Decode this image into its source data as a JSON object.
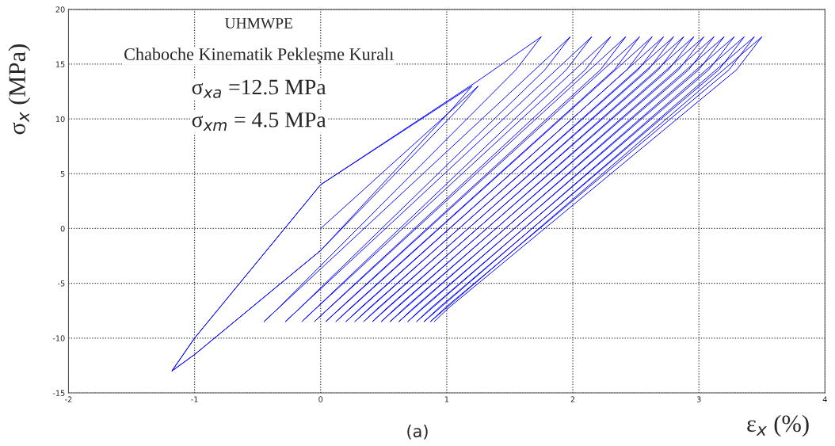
{
  "chart_data": {
    "type": "line",
    "xlabel": "ε$_{x}$ (%)",
    "ylabel": "σ$_{x}$ (MPa)",
    "annotations": [
      "UHMWPE",
      "Chaboche Kinematik Pekleşme Kuralı",
      "σ$_{xa}$ =12.5 MPa",
      "σ$_{xm}$ = 4.5 MPa",
      "(a)"
    ],
    "xlim": [
      -2,
      4
    ],
    "xticks": [
      -2,
      -1,
      0,
      1,
      2,
      3,
      4
    ],
    "ylim": [
      -15,
      20
    ],
    "yticks": [
      -15,
      -10,
      -5,
      0,
      5,
      10,
      15,
      20
    ],
    "grid": true,
    "marker": "none",
    "line_style": "solid",
    "series": [
      {
        "color": "#0000ff",
        "x": [
          0,
          1.25,
          1.1,
          0,
          -1.0,
          -1.18,
          -1.0,
          0,
          1.2,
          1.05,
          0,
          -1.0,
          -1.18,
          -1.0,
          0,
          1.25,
          1.75,
          1.55,
          -0.33,
          -0.45,
          1.98,
          1.78,
          -0.16,
          -0.28,
          2.15,
          1.95,
          -0.03,
          -0.15,
          2.3,
          2.1,
          0.07,
          -0.05,
          2.42,
          2.22,
          0.16,
          0.04,
          2.53,
          2.33,
          0.24,
          0.12,
          2.63,
          2.43,
          0.32,
          0.2,
          2.72,
          2.52,
          0.39,
          0.27,
          2.8,
          2.6,
          0.46,
          0.34,
          2.88,
          2.68,
          0.53,
          0.41,
          2.96,
          2.76,
          0.6,
          0.48,
          3.04,
          2.84,
          0.67,
          0.55,
          3.12,
          2.92,
          0.74,
          0.62,
          3.2,
          3.0,
          0.81,
          0.69,
          3.28,
          3.08,
          0.88,
          0.76,
          3.36,
          3.16,
          0.94,
          0.82,
          3.44,
          3.24,
          0.99,
          0.87,
          3.5,
          3.3,
          1.02,
          0.9
        ],
        "values": [
          0,
          13,
          11,
          -2,
          -11.5,
          -13,
          -10,
          4,
          13,
          11,
          -2,
          -11.5,
          -13,
          -10,
          4,
          13.5,
          17.5,
          14.5,
          -7.2,
          -8.5,
          17.5,
          14.5,
          -7.2,
          -8.5,
          17.5,
          14.5,
          -7.2,
          -8.5,
          17.5,
          14.5,
          -7.2,
          -8.5,
          17.5,
          14.5,
          -7.2,
          -8.5,
          17.5,
          14.5,
          -7.2,
          -8.5,
          17.5,
          14.5,
          -7.2,
          -8.5,
          17.5,
          14.5,
          -7.2,
          -8.5,
          17.5,
          14.5,
          -7.2,
          -8.5,
          17.5,
          14.5,
          -7.2,
          -8.5,
          17.5,
          14.5,
          -7.2,
          -8.5,
          17.5,
          14.5,
          -7.2,
          -8.5,
          17.5,
          14.5,
          -7.2,
          -8.5,
          17.5,
          14.5,
          -7.2,
          -8.5,
          17.5,
          14.5,
          -7.2,
          -8.5,
          17.5,
          14.5,
          -7.2,
          -8.5,
          17.5,
          14.5,
          -7.2,
          -8.5,
          17.5,
          14.5,
          -7.2,
          -8.5
        ]
      }
    ]
  }
}
